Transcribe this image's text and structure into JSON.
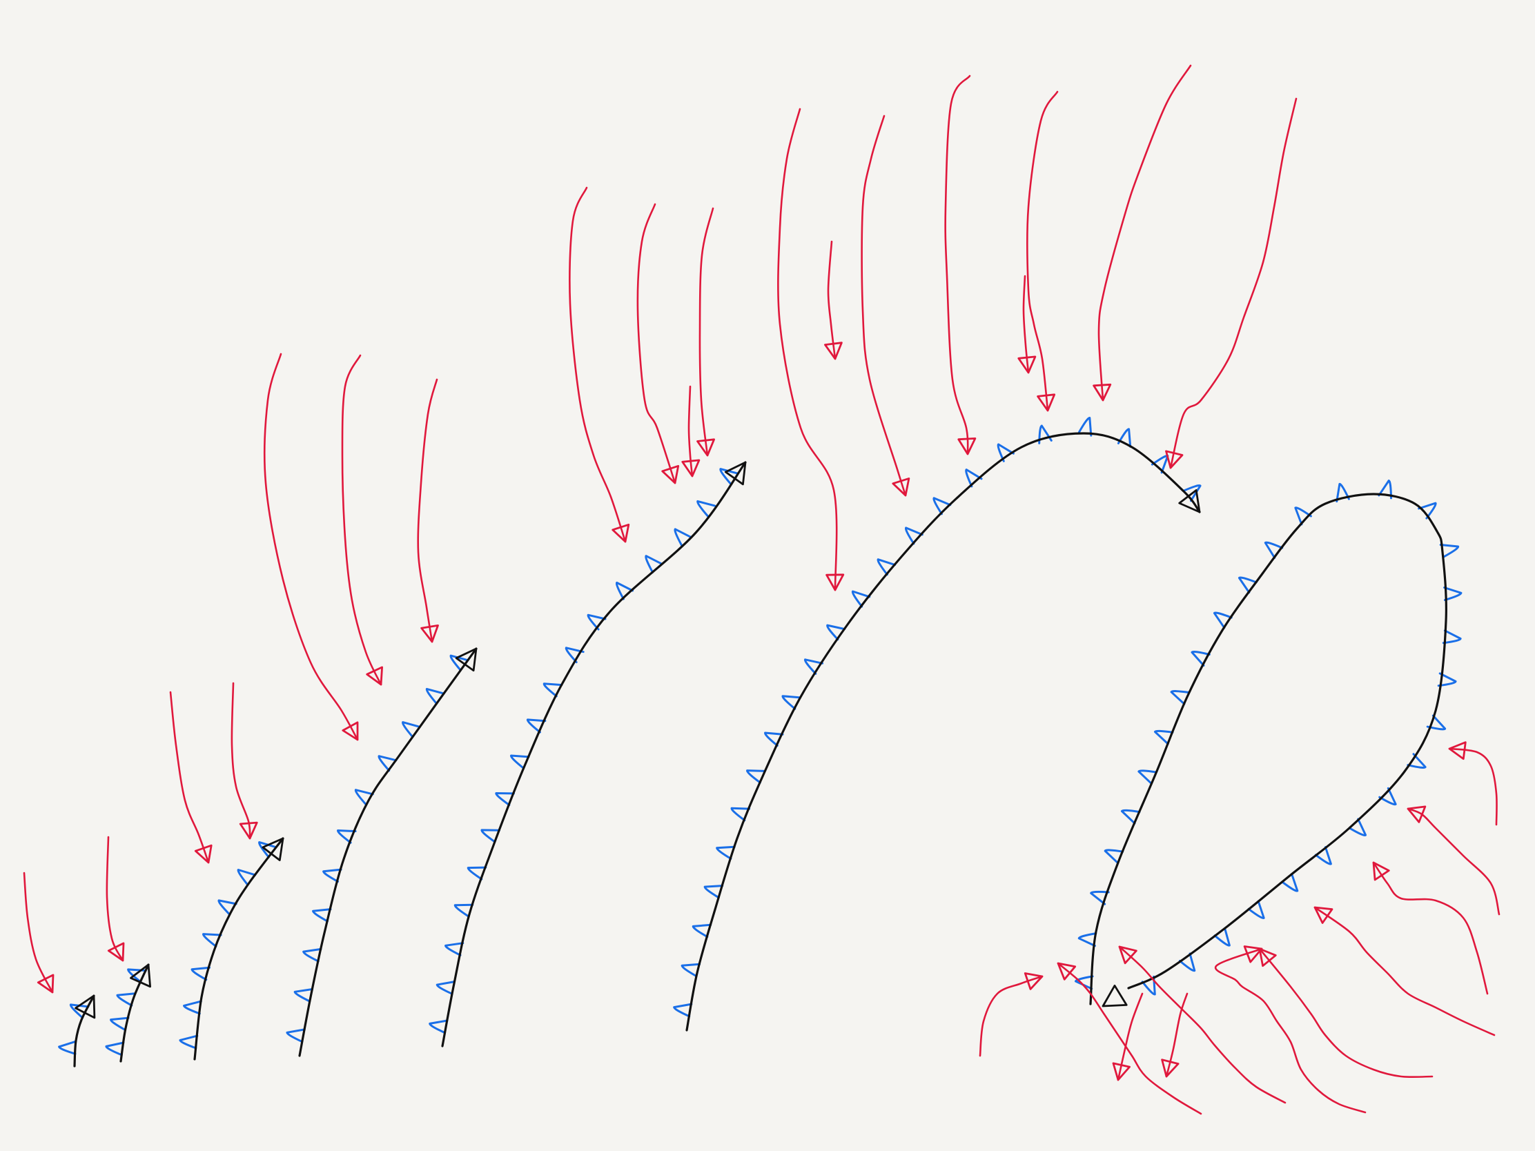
{
  "diagram": {
    "kind": "hand-drawn sketch",
    "text_labels": [],
    "colors": {
      "background": "#f5f4f1",
      "shadow_line": "#111111",
      "incoming_arrow": "#e0183c",
      "tick_mark": "#1a6fe8"
    },
    "shadow_lines": [
      {
        "name": "shadow-line-1",
        "arrow_direction": "forward"
      },
      {
        "name": "shadow-line-2",
        "arrow_direction": "forward"
      },
      {
        "name": "shadow-line-3",
        "arrow_direction": "forward"
      },
      {
        "name": "shadow-line-4",
        "arrow_direction": "forward"
      },
      {
        "name": "shadow-line-5",
        "arrow_direction": "forward"
      },
      {
        "name": "shadow-line-6",
        "arrow_direction": "forward"
      },
      {
        "name": "shadow-line-7",
        "arrow_direction": "backward"
      }
    ],
    "incoming_arrow_count": 30,
    "icons": [
      "arrowhead-icon",
      "tick-mark-icon"
    ]
  }
}
